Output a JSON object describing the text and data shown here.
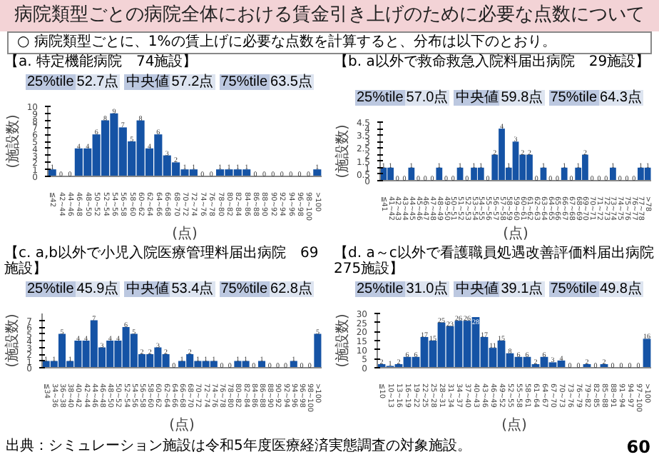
{
  "chart_data": [
    {
      "type": "other",
      "title": "病院類型ごとの病院全体における賃金引き上げのために必要な点数について",
      "subtitle": "○ 病院類型ごとに、1%の賃上げに必要な点数を計算すると、分布は以下のとおり。",
      "annotations": [
        "出典：シミュレーション施設は令和5年度医療経済実態調査の対象施設。",
        "60"
      ]
    },
    {
      "type": "bar",
      "title": "【a. 特定機能病院　74施設】",
      "ylabel": "(施設数)",
      "xlabel": "(点)",
      "color": "#1553a5",
      "data_labels": true,
      "ylim": [
        0,
        10
      ],
      "yticks": [
        0,
        1,
        2,
        3,
        4,
        5,
        6,
        7,
        8,
        9,
        10
      ],
      "annotations": [
        "25%tile",
        "52.7点",
        "中央値",
        "57.2点",
        "75%tile",
        "63.5点"
      ],
      "categories": [
        "≦42",
        "42~44",
        "44~46",
        "46~48",
        "48~50",
        "50~52",
        "52~54",
        "54~56",
        "56~58",
        "58~60",
        "60~62",
        "62~64",
        "64~66",
        "66~68",
        "68~70",
        "70~72",
        "72~74",
        "74~76",
        "76~78",
        "78~80",
        "80~82",
        "82~84",
        "84~86",
        "86~88",
        "88~90",
        "90~92",
        "92~94",
        "94~96",
        "96~98",
        "98~100",
        ">100"
      ],
      "values": [
        1,
        0,
        0,
        4,
        4,
        6,
        8,
        9,
        7,
        5,
        8,
        4,
        6,
        3,
        2,
        1,
        1,
        0,
        0,
        1,
        1,
        1,
        1,
        0,
        0,
        0,
        0,
        0,
        0,
        0,
        1
      ]
    },
    {
      "type": "bar",
      "title": "【b. a以外で救命救急入院料届出病院　29施設】",
      "ylabel": "(施設数)",
      "xlabel": "(点)",
      "color": "#1553a5",
      "data_labels": true,
      "ylim": [
        0,
        4.5
      ],
      "yticks": [
        0,
        0.5,
        1,
        1.5,
        2,
        2.5,
        3,
        3.5,
        4,
        4.5
      ],
      "annotations": [
        "25%tile",
        "57.0点",
        "中央値",
        "59.8点",
        "75%tile",
        "64.3点"
      ],
      "categories": [
        "≦41",
        "41~42",
        "42~43",
        "43~44",
        "44~45",
        "45~46",
        "46~47",
        "47~48",
        "48~49",
        "49~50",
        "50~51",
        "51~52",
        "52~53",
        "53~54",
        "54~55",
        "55~56",
        "56~57",
        "57~58",
        "58~59",
        "59~60",
        "60~61",
        "61~62",
        "62~63",
        "63~64",
        "64~65",
        "65~66",
        "66~67",
        "67~68",
        "68~69",
        "69~70",
        "70~71",
        "71~72",
        "72~73",
        "73~74",
        "74~75",
        "75~76",
        "76~77",
        "77~78",
        ">78"
      ],
      "values": [
        1,
        1,
        0,
        0,
        1,
        0,
        0,
        0,
        1,
        0,
        0,
        1,
        0,
        1,
        1,
        0,
        2,
        4,
        1,
        3,
        2,
        2,
        0,
        1,
        0,
        0,
        1,
        0,
        1,
        2,
        0,
        0,
        0,
        1,
        0,
        0,
        0,
        1,
        1
      ]
    },
    {
      "type": "bar",
      "title": "【c. a,b以外で小児入院医療管理料届出病院　69施設】",
      "ylabel": "(施設数)",
      "xlabel": "(点)",
      "color": "#1553a5",
      "data_labels": true,
      "ylim": [
        0,
        8
      ],
      "yticks": [
        0,
        1,
        2,
        3,
        4,
        5,
        6,
        7
      ],
      "annotations": [
        "25%tile",
        "45.9点",
        "中央値",
        "53.4点",
        "75%tile",
        "62.8点"
      ],
      "categories": [
        "≦34",
        "34~36",
        "36~38",
        "38~40",
        "40~42",
        "42~44",
        "44~46",
        "46~48",
        "48~50",
        "50~52",
        "52~54",
        "54~56",
        "56~58",
        "58~60",
        "60~62",
        "62~64",
        "64~66",
        "66~68",
        "68~70",
        "70~72",
        "72~74",
        "74~76",
        "76~78",
        "78~80",
        "80~82",
        "82~84",
        "84~86",
        "86~88",
        "88~90",
        "90~92",
        "92~94",
        "94~96",
        "96~98",
        "98~100",
        ">100"
      ],
      "values": [
        1,
        1,
        5,
        1,
        4,
        4,
        7,
        3,
        4,
        4,
        6,
        5,
        2,
        2,
        3,
        2,
        0,
        1,
        2,
        1,
        1,
        1,
        0,
        0,
        1,
        1,
        0,
        1,
        0,
        0,
        0,
        1,
        0,
        0,
        5
      ]
    },
    {
      "type": "bar",
      "title": "【d. a～c以外で看護職員処遇改善評価料届出病院　275施設】",
      "ylabel": "(施設数)",
      "xlabel": "(点)",
      "color": "#1553a5",
      "data_labels": true,
      "ylim": [
        0,
        30
      ],
      "yticks": [
        0,
        5,
        10,
        15,
        20,
        25,
        30
      ],
      "annotations": [
        "25%tile",
        "31.0点",
        "中央値",
        "39.1点",
        "75%tile",
        "49.8点"
      ],
      "categories": [
        "≦10",
        "10~13",
        "13~16",
        "16~19",
        "19~22",
        "22~25",
        "25~28",
        "28~31",
        "31~34",
        "34~37",
        "37~40",
        "40~43",
        "43~46",
        "46~49",
        "49~52",
        "52~55",
        "55~58",
        "58~61",
        "61~64",
        "64~67",
        "67~70",
        "70~73",
        "73~76",
        "76~79",
        "79~82",
        "82~85",
        "85~88",
        "88~91",
        "91~94",
        "94~97",
        "97~100",
        ">100"
      ],
      "values": [
        2,
        1,
        2,
        6,
        6,
        17,
        15,
        25,
        23,
        26,
        26,
        28,
        17,
        11,
        15,
        8,
        6,
        6,
        2,
        6,
        3,
        4,
        0,
        0,
        2,
        0,
        2,
        0,
        0,
        0,
        0,
        16
      ]
    }
  ]
}
